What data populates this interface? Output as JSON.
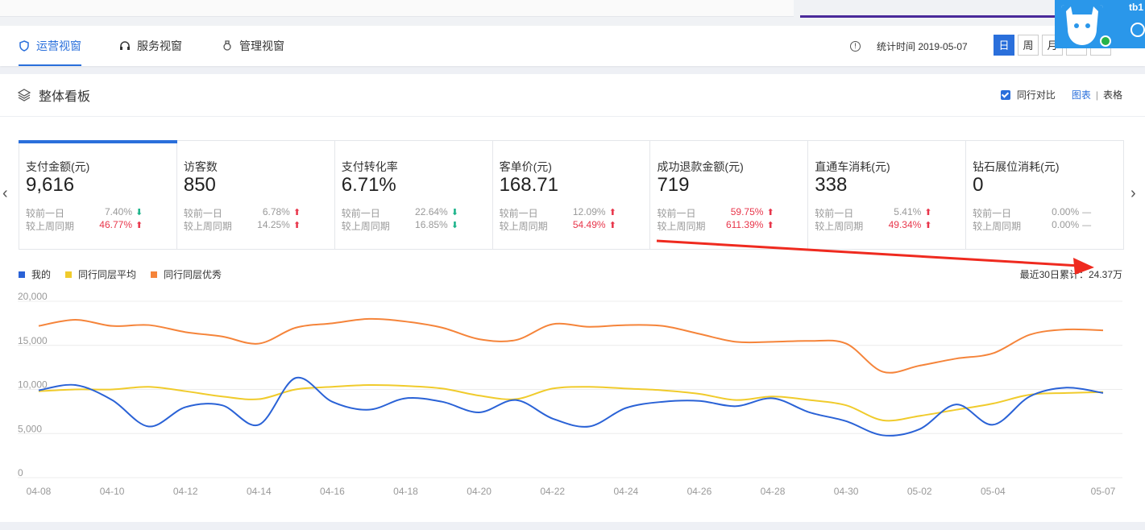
{
  "tabs": [
    {
      "label": "运营视窗",
      "active": true
    },
    {
      "label": "服务视窗",
      "active": false
    },
    {
      "label": "管理视窗",
      "active": false
    }
  ],
  "stat_time": "统计时间 2019-05-07",
  "periods": [
    "日",
    "周",
    "月",
    "<",
    ">"
  ],
  "user_tag": "tb1",
  "panel": {
    "title": "整体看板",
    "compare_label": "同行对比",
    "view_chart": "图表",
    "view_sep": "|",
    "view_table": "表格"
  },
  "cards": [
    {
      "name": "支付金额(元)",
      "value": "9,616",
      "rows": [
        {
          "label": "较前一日",
          "pct": "7.40%",
          "dir": "down",
          "red": false
        },
        {
          "label": "较上周同期",
          "pct": "46.77%",
          "dir": "up",
          "red": true
        }
      ]
    },
    {
      "name": "访客数",
      "value": "850",
      "rows": [
        {
          "label": "较前一日",
          "pct": "6.78%",
          "dir": "up",
          "red": false
        },
        {
          "label": "较上周同期",
          "pct": "14.25%",
          "dir": "up",
          "red": false
        }
      ]
    },
    {
      "name": "支付转化率",
      "value": "6.71%",
      "rows": [
        {
          "label": "较前一日",
          "pct": "22.64%",
          "dir": "down",
          "red": false
        },
        {
          "label": "较上周同期",
          "pct": "16.85%",
          "dir": "down",
          "red": false
        }
      ]
    },
    {
      "name": "客单价(元)",
      "value": "168.71",
      "rows": [
        {
          "label": "较前一日",
          "pct": "12.09%",
          "dir": "up",
          "red": false
        },
        {
          "label": "较上周同期",
          "pct": "54.49%",
          "dir": "up",
          "red": true
        }
      ]
    },
    {
      "name": "成功退款金额(元)",
      "value": "719",
      "rows": [
        {
          "label": "较前一日",
          "pct": "59.75%",
          "dir": "up",
          "red": true
        },
        {
          "label": "较上周同期",
          "pct": "611.39%",
          "dir": "up",
          "red": true
        }
      ]
    },
    {
      "name": "直通车消耗(元)",
      "value": "338",
      "rows": [
        {
          "label": "较前一日",
          "pct": "5.41%",
          "dir": "up",
          "red": false
        },
        {
          "label": "较上周同期",
          "pct": "49.34%",
          "dir": "up",
          "red": true
        }
      ]
    },
    {
      "name": "钻石展位消耗(元)",
      "value": "0",
      "rows": [
        {
          "label": "较前一日",
          "pct": "0.00%",
          "dir": "flat",
          "red": false
        },
        {
          "label": "较上周同期",
          "pct": "0.00%",
          "dir": "flat",
          "red": false
        }
      ]
    }
  ],
  "cumulative": "最近30日累计：24.37万",
  "colors": {
    "accent": "#2a6fdb",
    "up": "#e8364b",
    "down": "#1bb38a",
    "my": "#2a62d6",
    "avg": "#f0cb2c",
    "best": "#f5843a",
    "annotation": "#ef2a1f"
  },
  "chart_data": {
    "type": "line",
    "x": [
      "04-08",
      "04-09",
      "04-10",
      "04-11",
      "04-12",
      "04-13",
      "04-14",
      "04-15",
      "04-16",
      "04-17",
      "04-18",
      "04-19",
      "04-20",
      "04-21",
      "04-22",
      "04-23",
      "04-24",
      "04-25",
      "04-26",
      "04-27",
      "04-28",
      "04-29",
      "04-30",
      "05-01",
      "05-02",
      "05-03",
      "05-04",
      "05-05",
      "05-06",
      "05-07"
    ],
    "x_ticks": [
      "04-08",
      "04-10",
      "04-12",
      "04-14",
      "04-16",
      "04-18",
      "04-20",
      "04-22",
      "04-24",
      "04-26",
      "04-28",
      "04-30",
      "05-02",
      "05-04",
      "05-07"
    ],
    "y_ticks": [
      "20,000",
      "15,000",
      "10,000",
      "5,000",
      "0"
    ],
    "ylim": [
      0,
      20000
    ],
    "grid": true,
    "legend_position": "top-left",
    "series": [
      {
        "name": "我的",
        "values": [
          9900,
          10500,
          8800,
          5800,
          8000,
          8200,
          6000,
          11300,
          8600,
          7700,
          9000,
          8600,
          7400,
          8800,
          6700,
          5800,
          7900,
          8600,
          8700,
          8100,
          9000,
          7400,
          6400,
          4800,
          5500,
          8300,
          6000,
          9200,
          10200,
          9600
        ]
      },
      {
        "name": "同行同层平均",
        "values": [
          9800,
          10000,
          10000,
          10300,
          9800,
          9200,
          8900,
          10000,
          10300,
          10500,
          10400,
          10100,
          9300,
          8900,
          10100,
          10300,
          10100,
          9900,
          9500,
          8800,
          9200,
          8800,
          8200,
          6500,
          7000,
          7700,
          8400,
          9400,
          9600,
          9700
        ]
      },
      {
        "name": "同行同层优秀",
        "values": [
          17200,
          17900,
          17200,
          17300,
          16500,
          16000,
          15200,
          17000,
          17500,
          18000,
          17700,
          17000,
          15700,
          15600,
          17400,
          17100,
          17300,
          17200,
          16300,
          15400,
          15400,
          15500,
          15200,
          12000,
          12700,
          13500,
          14100,
          16200,
          16800,
          16700
        ]
      }
    ]
  }
}
